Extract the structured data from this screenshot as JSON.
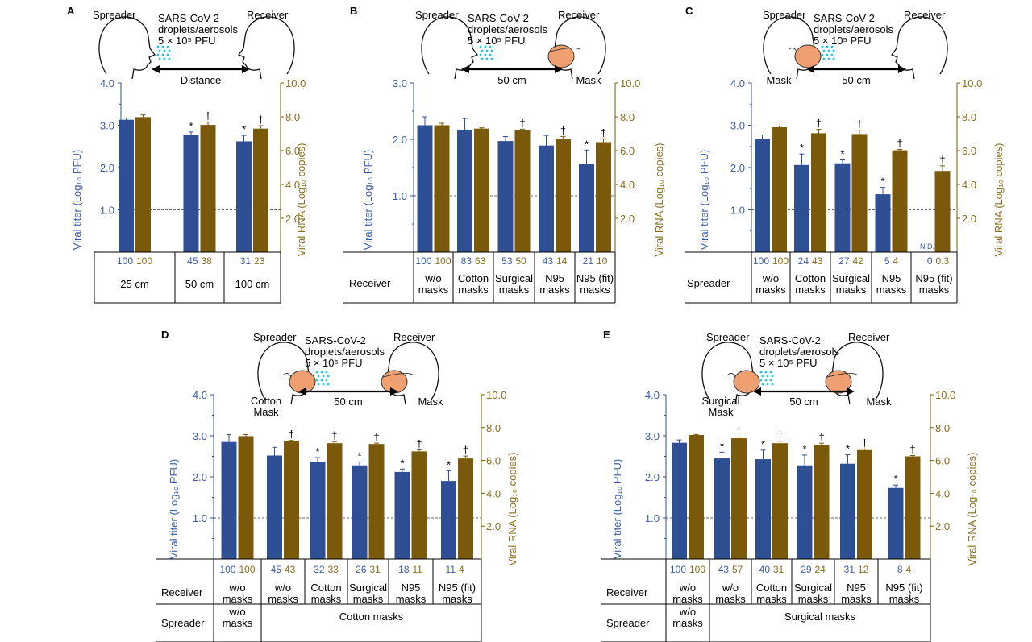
{
  "colors": {
    "titer": "#2f4f94",
    "rna": "#7a5a0a",
    "titer_text": "#3a5da8",
    "rna_text": "#8a6d1e",
    "aerosol": "#1ec6e8",
    "mask": "#f0a070"
  },
  "common": {
    "spreader": "Spreader",
    "receiver": "Receiver",
    "virus_line1": "SARS-CoV-2",
    "virus_line2": "droplets/aerosols",
    "virus_dose": "5 × 10⁵ PFU",
    "mask": "Mask",
    "y_left": "Viral titer (Log₁₀ PFU)",
    "y_right": "Viral RNA (Log₁₀ copies)",
    "significance_star": "*",
    "significance_dagger": "†",
    "not_detected": "N.D."
  },
  "chart_data": [
    {
      "id": "A",
      "type": "bar",
      "distance_label": "Distance",
      "spreader_label": "",
      "categories": [
        "25 cm",
        "50 cm",
        "100 cm"
      ],
      "row_label": "",
      "ylim_left": [
        0,
        4
      ],
      "yticks_left": [
        "1.0",
        "2.0",
        "3.0",
        "4.0"
      ],
      "ylim_right": [
        0,
        10
      ],
      "yticks_right": [
        "2.0",
        "4.0",
        "6.0",
        "8.0",
        "10.0"
      ],
      "detection_limit_left": 1.0,
      "series": [
        {
          "key": "titer",
          "values": [
            3.13,
            2.78,
            2.62
          ],
          "err": [
            0.04,
            0.06,
            0.14
          ],
          "star": [
            false,
            true,
            true
          ],
          "pct": [
            "100",
            "45",
            "31"
          ]
        },
        {
          "key": "rna",
          "values": [
            7.98,
            7.52,
            7.3
          ],
          "err": [
            0.13,
            0.16,
            0.18
          ],
          "dagger": [
            false,
            true,
            true
          ],
          "pct": [
            "100",
            "38",
            "23"
          ]
        }
      ]
    },
    {
      "id": "B",
      "type": "bar",
      "distance_label": "50 cm",
      "row_label": "Receiver",
      "categories": [
        "w/o\nmasks",
        "Cotton\nmasks",
        "Surgical\nmasks",
        "N95\nmasks",
        "N95 (fit)\nmasks"
      ],
      "ylim_left": [
        0,
        3
      ],
      "yticks_left": [
        "1.0",
        "2.0",
        "3.0"
      ],
      "ylim_right": [
        0,
        10
      ],
      "yticks_right": [
        "2.0",
        "4.0",
        "6.0",
        "8.0",
        "10.0"
      ],
      "detection_limit_left": 1.0,
      "series": [
        {
          "key": "titer",
          "values": [
            2.25,
            2.17,
            1.97,
            1.89,
            1.56
          ],
          "err": [
            0.15,
            0.2,
            0.08,
            0.18,
            0.25
          ],
          "star": [
            false,
            false,
            false,
            false,
            true
          ],
          "pct": [
            "100",
            "83",
            "53",
            "43",
            "21"
          ]
        },
        {
          "key": "rna",
          "values": [
            7.5,
            7.3,
            7.2,
            6.67,
            6.5
          ],
          "err": [
            0.12,
            0.05,
            0.07,
            0.17,
            0.2
          ],
          "dagger": [
            false,
            false,
            true,
            true,
            true
          ],
          "pct": [
            "100",
            "63",
            "50",
            "14",
            "10"
          ]
        }
      ]
    },
    {
      "id": "C",
      "type": "bar",
      "distance_label": "50 cm",
      "row_label": "Spreader",
      "categories": [
        "w/o\nmasks",
        "Cotton\nmasks",
        "Surgical\nmasks",
        "N95\nmasks",
        "N95 (fit)\nmasks"
      ],
      "ylim_left": [
        0,
        4
      ],
      "yticks_left": [
        "1.0",
        "2.0",
        "3.0",
        "4.0"
      ],
      "ylim_right": [
        0,
        10
      ],
      "yticks_right": [
        "2.0",
        "4.0",
        "6.0",
        "8.0",
        "10.0"
      ],
      "detection_limit_left": 1.0,
      "series": [
        {
          "key": "titer",
          "values": [
            2.67,
            2.06,
            2.1,
            1.37,
            0
          ],
          "err": [
            0.1,
            0.26,
            0.08,
            0.16,
            0
          ],
          "star": [
            false,
            true,
            true,
            true,
            false
          ],
          "pct": [
            "100",
            "24",
            "27",
            "5",
            "0"
          ]
        },
        {
          "key": "rna",
          "values": [
            7.38,
            7.03,
            6.98,
            6.02,
            4.8
          ],
          "err": [
            0.07,
            0.23,
            0.23,
            0.05,
            0.3
          ],
          "dagger": [
            false,
            true,
            true,
            true,
            true
          ],
          "pct": [
            "100",
            "43",
            "42",
            "4",
            "0.3"
          ]
        }
      ]
    },
    {
      "id": "D",
      "type": "bar",
      "distance_label": "50 cm",
      "spreader_mask_label": "Cotton\nMask",
      "row_label": "Receiver",
      "row2_label": "Spreader",
      "row2_first": "w/o\nmasks",
      "row2_rest": "Cotton masks",
      "categories": [
        "w/o\nmasks",
        "w/o\nmasks",
        "Cotton\nmasks",
        "Surgical\nmasks",
        "N95\nmasks",
        "N95 (fit)\nmasks"
      ],
      "ylim_left": [
        0,
        4
      ],
      "yticks_left": [
        "1.0",
        "2.0",
        "3.0",
        "4.0"
      ],
      "ylim_right": [
        0,
        10
      ],
      "yticks_right": [
        "2.0",
        "4.0",
        "6.0",
        "8.0",
        "10.0"
      ],
      "detection_limit_left": 1.0,
      "series": [
        {
          "key": "titer",
          "values": [
            2.85,
            2.52,
            2.37,
            2.28,
            2.12,
            1.9
          ],
          "err": [
            0.18,
            0.2,
            0.1,
            0.08,
            0.07,
            0.25
          ],
          "star": [
            false,
            false,
            true,
            true,
            true,
            true
          ],
          "pct": [
            "100",
            "45",
            "32",
            "26",
            "18",
            "11"
          ]
        },
        {
          "key": "rna",
          "values": [
            7.48,
            7.17,
            7.05,
            7.0,
            6.55,
            6.12
          ],
          "err": [
            0.1,
            0.05,
            0.1,
            0.05,
            0.1,
            0.15
          ],
          "dagger": [
            false,
            true,
            true,
            true,
            true,
            true
          ],
          "pct": [
            "100",
            "43",
            "33",
            "31",
            "11",
            "4"
          ]
        }
      ]
    },
    {
      "id": "E",
      "type": "bar",
      "distance_label": "50 cm",
      "spreader_mask_label": "Surgical\nMask",
      "row_label": "Receiver",
      "row2_label": "Spreader",
      "row2_first": "w/o\nmasks",
      "row2_rest": "Surgical masks",
      "categories": [
        "w/o\nmasks",
        "w/o\nmasks",
        "Cotton\nmasks",
        "Surgical\nmasks",
        "N95\nmasks",
        "N95 (fit)\nmasks"
      ],
      "ylim_left": [
        0,
        4
      ],
      "yticks_left": [
        "1.0",
        "2.0",
        "3.0",
        "4.0"
      ],
      "ylim_right": [
        0,
        10
      ],
      "yticks_right": [
        "2.0",
        "4.0",
        "6.0",
        "8.0",
        "10.0"
      ],
      "detection_limit_left": 1.0,
      "series": [
        {
          "key": "titer",
          "values": [
            2.83,
            2.45,
            2.43,
            2.28,
            2.32,
            1.73
          ],
          "err": [
            0.07,
            0.15,
            0.22,
            0.25,
            0.22,
            0.07
          ],
          "star": [
            false,
            true,
            true,
            true,
            true,
            true
          ],
          "pct": [
            "100",
            "43",
            "40",
            "29",
            "31",
            "8"
          ]
        },
        {
          "key": "rna",
          "values": [
            7.55,
            7.35,
            7.05,
            6.95,
            6.63,
            6.25
          ],
          "err": [
            0.03,
            0.07,
            0.12,
            0.1,
            0.07,
            0.05
          ],
          "dagger": [
            false,
            true,
            true,
            true,
            true,
            true
          ],
          "pct": [
            "100",
            "57",
            "31",
            "24",
            "12",
            "4"
          ]
        }
      ]
    }
  ]
}
